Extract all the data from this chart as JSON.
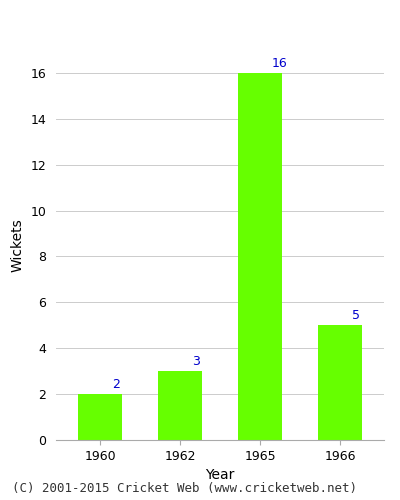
{
  "categories": [
    "1960",
    "1962",
    "1965",
    "1966"
  ],
  "values": [
    2,
    3,
    16,
    5
  ],
  "bar_color": "#66ff00",
  "bar_edge_color": "#66ff00",
  "xlabel": "Year",
  "ylabel": "Wickets",
  "ylim": [
    0,
    17
  ],
  "yticks": [
    0,
    2,
    4,
    6,
    8,
    10,
    12,
    14,
    16
  ],
  "label_color": "#0000cc",
  "label_fontsize": 9,
  "axis_label_fontsize": 10,
  "tick_fontsize": 9,
  "footer_text": "(C) 2001-2015 Cricket Web (www.cricketweb.net)",
  "footer_fontsize": 9,
  "background_color": "#ffffff",
  "grid_color": "#cccccc"
}
